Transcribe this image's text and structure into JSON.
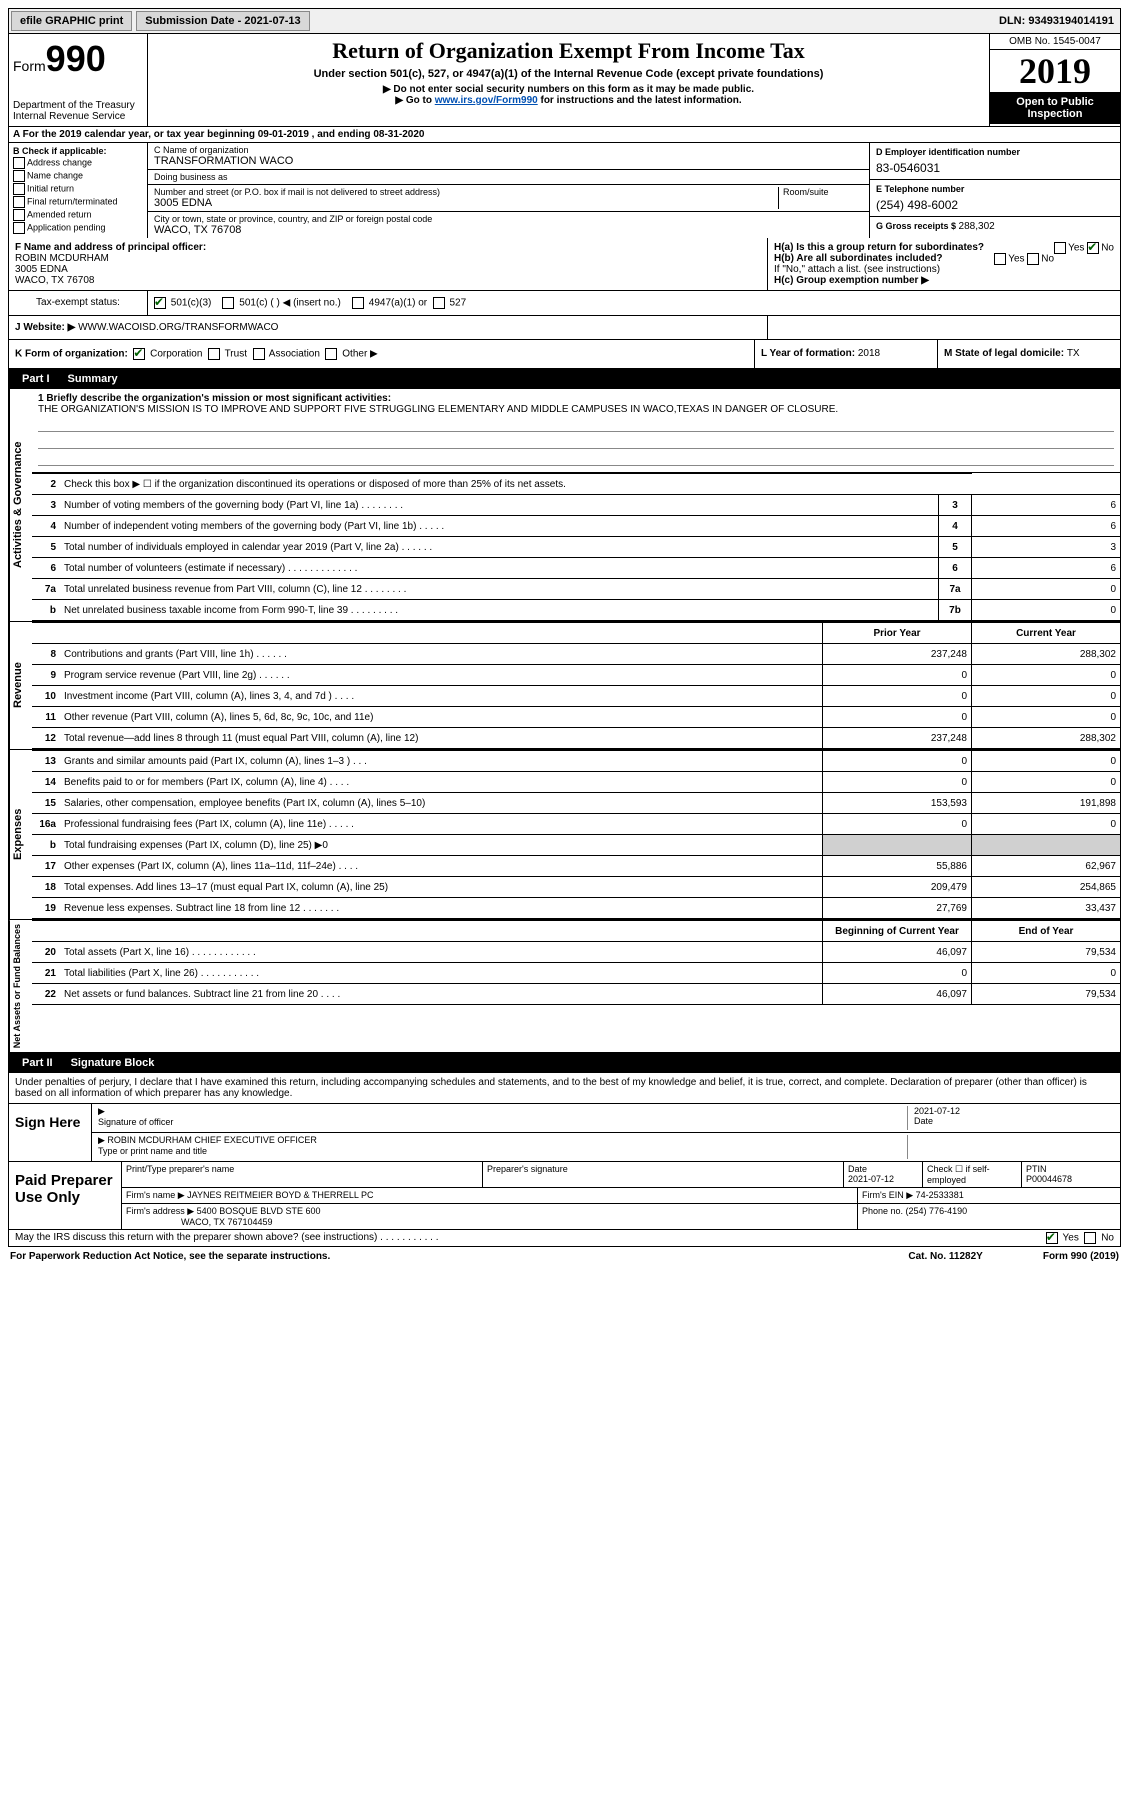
{
  "topbar": {
    "efile": "efile GRAPHIC print",
    "submission_label": "Submission Date - ",
    "submission_date": "2021-07-13",
    "dln_label": "DLN: ",
    "dln": "93493194014191"
  },
  "header": {
    "form_label": "Form",
    "form_num": "990",
    "dept": "Department of the Treasury\nInternal Revenue Service",
    "title": "Return of Organization Exempt From Income Tax",
    "sub1": "Under section 501(c), 527, or 4947(a)(1) of the Internal Revenue Code (except private foundations)",
    "sub2": "▶ Do not enter social security numbers on this form as it may be made public.",
    "sub3_a": "▶ Go to ",
    "sub3_link": "www.irs.gov/Form990",
    "sub3_b": " for instructions and the latest information.",
    "omb": "OMB No. 1545-0047",
    "year": "2019",
    "open": "Open to Public Inspection"
  },
  "section_a": "A For the 2019 calendar year, or tax year beginning 09-01-2019   , and ending 08-31-2020",
  "col_b": {
    "title": "B Check if applicable:",
    "items": [
      "Address change",
      "Name change",
      "Initial return",
      "Final return/terminated",
      "Amended return",
      "Application pending"
    ]
  },
  "col_c": {
    "name_label": "C Name of organization",
    "name": "TRANSFORMATION WACO",
    "dba_label": "Doing business as",
    "dba": "",
    "addr_label": "Number and street (or P.O. box if mail is not delivered to street address)",
    "addr": "3005 EDNA",
    "room_label": "Room/suite",
    "city_label": "City or town, state or province, country, and ZIP or foreign postal code",
    "city": "WACO, TX  76708"
  },
  "col_d": {
    "ein_label": "D Employer identification number",
    "ein": "83-0546031",
    "phone_label": "E Telephone number",
    "phone": "(254) 498-6002",
    "gross_label": "G Gross receipts $ ",
    "gross": "288,302"
  },
  "row_f": {
    "label": "F  Name and address of principal officer:",
    "name": "ROBIN MCDURHAM",
    "addr": "3005 EDNA",
    "city": "WACO, TX  76708"
  },
  "row_h": {
    "ha_label": "H(a)  Is this a group return for subordinates?",
    "ha_yes": "Yes",
    "ha_no": "No",
    "hb_label": "H(b)  Are all subordinates included?",
    "hb_note": "If \"No,\" attach a list. (see instructions)",
    "hc_label": "H(c)  Group exemption number ▶"
  },
  "tax_exempt": {
    "label": "Tax-exempt status:",
    "opt1": "501(c)(3)",
    "opt2": "501(c) (  ) ◀ (insert no.)",
    "opt3": "4947(a)(1) or",
    "opt4": "527"
  },
  "website": {
    "label": "J  Website: ▶",
    "val": "WWW.WACOISD.ORG/TRANSFORMWACO"
  },
  "row_k": {
    "k_label": "K Form of organization:",
    "k_opts": [
      "Corporation",
      "Trust",
      "Association",
      "Other ▶"
    ],
    "l_label": "L Year of formation: ",
    "l_val": "2018",
    "m_label": "M State of legal domicile: ",
    "m_val": "TX"
  },
  "part1": {
    "header": "Part I",
    "title": "Summary",
    "mission_label": "1  Briefly describe the organization's mission or most significant activities:",
    "mission": "THE ORGANIZATION'S MISSION IS TO IMPROVE AND SUPPORT FIVE STRUGGLING ELEMENTARY AND MIDDLE CAMPUSES IN WACO,TEXAS IN DANGER OF CLOSURE.",
    "line2": "Check this box ▶ ☐  if the organization discontinued its operations or disposed of more than 25% of its net assets.",
    "sections": {
      "gov": "Activities & Governance",
      "rev": "Revenue",
      "exp": "Expenses",
      "net": "Net Assets or Fund Balances"
    },
    "gov_rows": [
      {
        "n": "3",
        "d": "Number of voting members of the governing body (Part VI, line 1a)   .    .    .    .    .    .    .    .",
        "c": "3",
        "v": "6"
      },
      {
        "n": "4",
        "d": "Number of independent voting members of the governing body (Part VI, line 1b)   .    .    .    .    .",
        "c": "4",
        "v": "6"
      },
      {
        "n": "5",
        "d": "Total number of individuals employed in calendar year 2019 (Part V, line 2a)   .    .    .    .    .    .",
        "c": "5",
        "v": "3"
      },
      {
        "n": "6",
        "d": "Total number of volunteers (estimate if necessary)   .    .    .    .    .    .    .    .    .    .    .    .    .",
        "c": "6",
        "v": "6"
      },
      {
        "n": "7a",
        "d": "Total unrelated business revenue from Part VIII, column (C), line 12   .    .    .    .    .    .    .    .",
        "c": "7a",
        "v": "0"
      },
      {
        "n": "b",
        "d": "Net unrelated business taxable income from Form 990-T, line 39   .    .    .    .    .    .    .    .    .",
        "c": "7b",
        "v": "0"
      }
    ],
    "col_headers": {
      "py": "Prior Year",
      "cy": "Current Year"
    },
    "rev_rows": [
      {
        "n": "8",
        "d": "Contributions and grants (Part VIII, line 1h)   .    .    .    .    .    .",
        "py": "237,248",
        "cy": "288,302"
      },
      {
        "n": "9",
        "d": "Program service revenue (Part VIII, line 2g)   .    .    .    .    .    .",
        "py": "0",
        "cy": "0"
      },
      {
        "n": "10",
        "d": "Investment income (Part VIII, column (A), lines 3, 4, and 7d )   .    .    .    .",
        "py": "0",
        "cy": "0"
      },
      {
        "n": "11",
        "d": "Other revenue (Part VIII, column (A), lines 5, 6d, 8c, 9c, 10c, and 11e)",
        "py": "0",
        "cy": "0"
      },
      {
        "n": "12",
        "d": "Total revenue—add lines 8 through 11 (must equal Part VIII, column (A), line 12)",
        "py": "237,248",
        "cy": "288,302"
      }
    ],
    "exp_rows": [
      {
        "n": "13",
        "d": "Grants and similar amounts paid (Part IX, column (A), lines 1–3 )   .    .    .",
        "py": "0",
        "cy": "0"
      },
      {
        "n": "14",
        "d": "Benefits paid to or for members (Part IX, column (A), line 4)   .    .    .    .",
        "py": "0",
        "cy": "0"
      },
      {
        "n": "15",
        "d": "Salaries, other compensation, employee benefits (Part IX, column (A), lines 5–10)",
        "py": "153,593",
        "cy": "191,898"
      },
      {
        "n": "16a",
        "d": "Professional fundraising fees (Part IX, column (A), line 11e)   .    .    .    .    .",
        "py": "0",
        "cy": "0"
      },
      {
        "n": "b",
        "d": "Total fundraising expenses (Part IX, column (D), line 25) ▶0",
        "py": "",
        "cy": "",
        "shade": true
      },
      {
        "n": "17",
        "d": "Other expenses (Part IX, column (A), lines 11a–11d, 11f–24e)   .    .    .    .",
        "py": "55,886",
        "cy": "62,967"
      },
      {
        "n": "18",
        "d": "Total expenses. Add lines 13–17 (must equal Part IX, column (A), line 25)",
        "py": "209,479",
        "cy": "254,865"
      },
      {
        "n": "19",
        "d": "Revenue less expenses. Subtract line 18 from line 12   .    .    .    .    .    .    .",
        "py": "27,769",
        "cy": "33,437"
      }
    ],
    "net_headers": {
      "bcy": "Beginning of Current Year",
      "ey": "End of Year"
    },
    "net_rows": [
      {
        "n": "20",
        "d": "Total assets (Part X, line 16)   .    .    .    .    .    .    .    .    .    .    .    .",
        "py": "46,097",
        "cy": "79,534"
      },
      {
        "n": "21",
        "d": "Total liabilities (Part X, line 26)   .    .    .    .    .    .    .    .    .    .    .",
        "py": "0",
        "cy": "0"
      },
      {
        "n": "22",
        "d": "Net assets or fund balances. Subtract line 21 from line 20   .    .    .    .",
        "py": "46,097",
        "cy": "79,534"
      }
    ]
  },
  "part2": {
    "header": "Part II",
    "title": "Signature Block",
    "note": "Under penalties of perjury, I declare that I have examined this return, including accompanying schedules and statements, and to the best of my knowledge and belief, it is true, correct, and complete. Declaration of preparer (other than officer) is based on all information of which preparer has any knowledge.",
    "sign_here": "Sign Here",
    "sig_officer": "Signature of officer",
    "sig_date_label": "Date",
    "sig_date": "2021-07-12",
    "sig_name": "ROBIN MCDURHAM  CHIEF EXECUTIVE OFFICER",
    "sig_name_label": "Type or print name and title",
    "paid": "Paid Preparer Use Only",
    "prep_name_label": "Print/Type preparer's name",
    "prep_sig_label": "Preparer's signature",
    "prep_date_label": "Date",
    "prep_date": "2021-07-12",
    "prep_check_label": "Check ☐ if self-employed",
    "ptin_label": "PTIN",
    "ptin": "P00044678",
    "firm_name_label": "Firm's name    ▶",
    "firm_name": "JAYNES REITMEIER BOYD & THERRELL PC",
    "firm_ein_label": "Firm's EIN ▶",
    "firm_ein": "74-2533381",
    "firm_addr_label": "Firm's address ▶",
    "firm_addr1": "5400 BOSQUE BLVD STE 600",
    "firm_addr2": "WACO, TX  767104459",
    "firm_phone_label": "Phone no. ",
    "firm_phone": "(254) 776-4190",
    "discuss": "May the IRS discuss this return with the preparer shown above? (see instructions)   .    .    .    .    .    .    .    .    .    .    .",
    "discuss_yes": "Yes",
    "discuss_no": "No"
  },
  "footer": {
    "pra": "For Paperwork Reduction Act Notice, see the separate instructions.",
    "cat": "Cat. No. 11282Y",
    "form": "Form 990 (2019)"
  }
}
